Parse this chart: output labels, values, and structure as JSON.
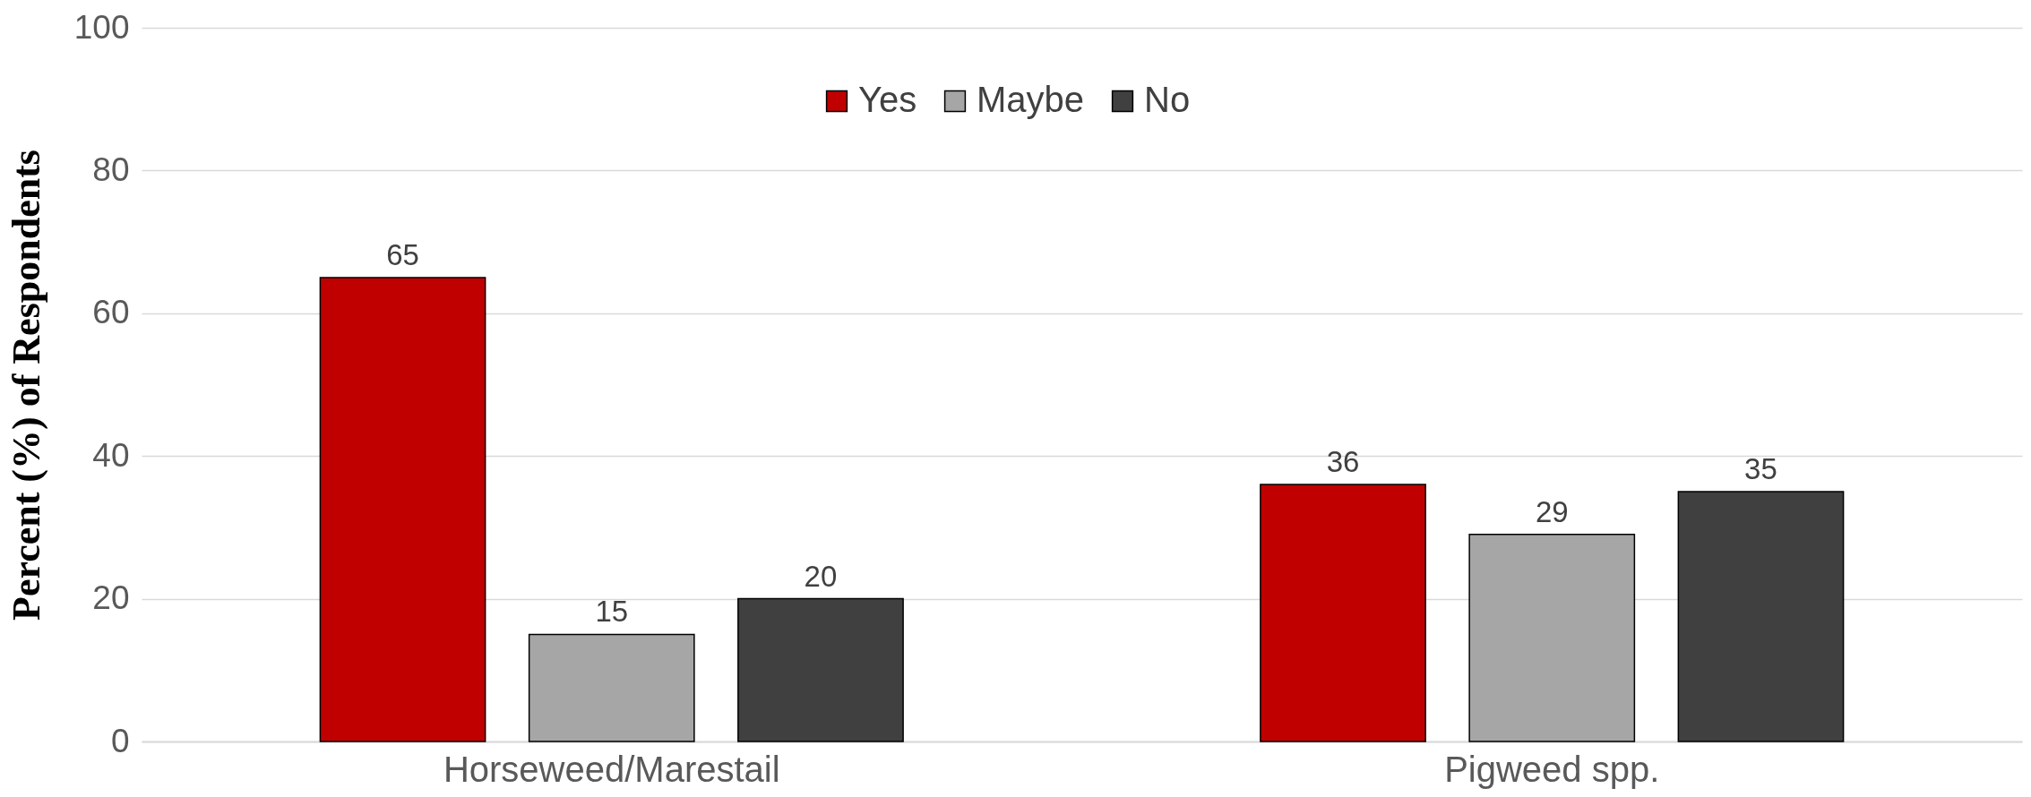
{
  "chart_data": {
    "type": "bar",
    "ylabel": "Percent (%) of Respondents",
    "categories": [
      "Horseweed/Marestail",
      "Pigweed spp."
    ],
    "series": [
      {
        "name": "Yes",
        "color": "#c00000",
        "values": [
          65,
          36
        ]
      },
      {
        "name": "Maybe",
        "color": "#a6a6a6",
        "values": [
          15,
          29
        ]
      },
      {
        "name": "No",
        "color": "#404040",
        "values": [
          20,
          35
        ]
      }
    ],
    "ylim": [
      0,
      100
    ],
    "yticks": [
      0,
      20,
      40,
      60,
      80,
      100
    ],
    "grid": "y",
    "legend": "top",
    "data_labels": true
  }
}
